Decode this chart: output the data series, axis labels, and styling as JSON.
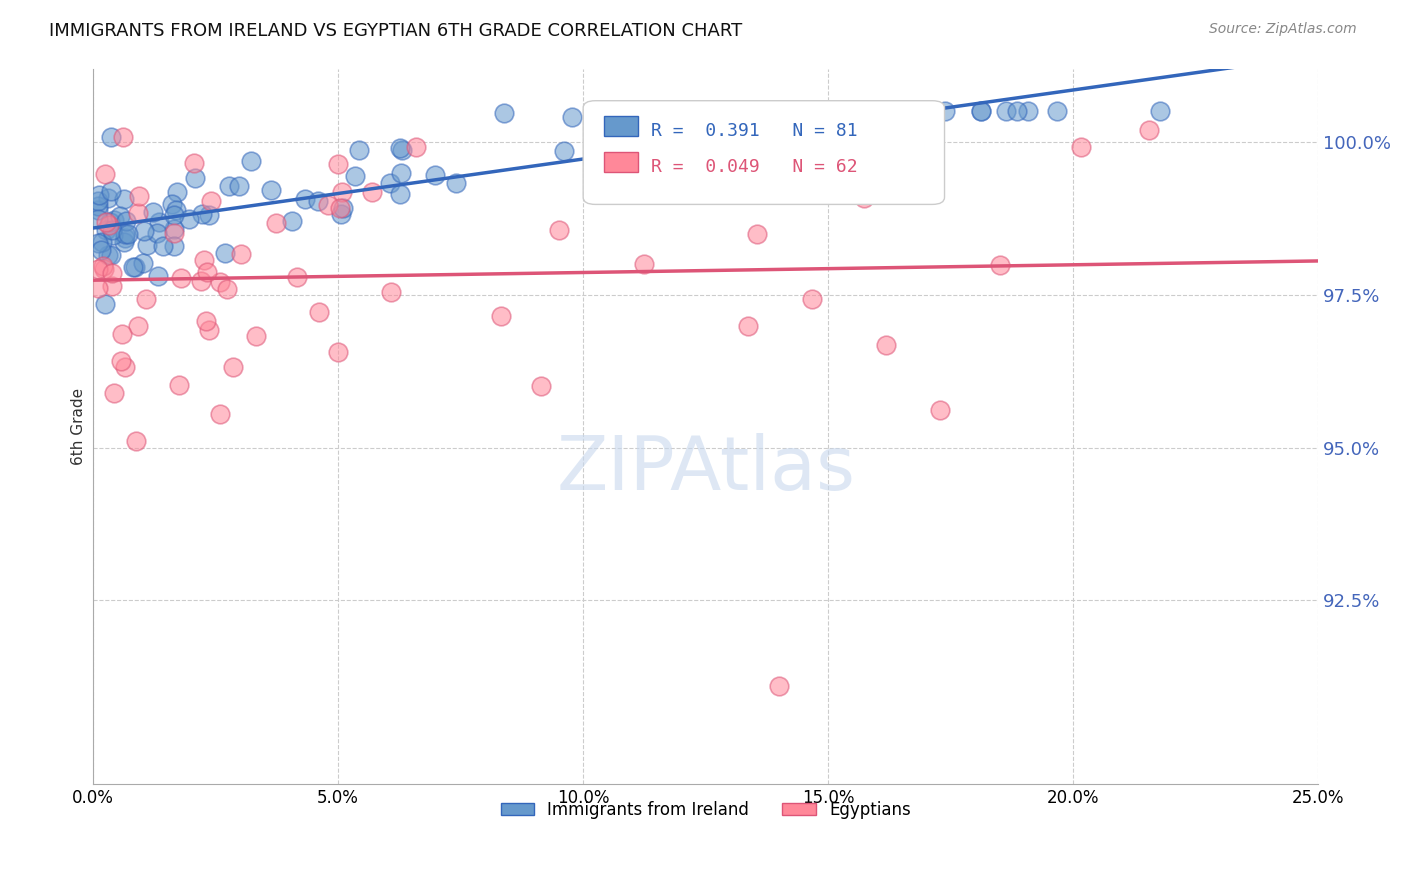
{
  "title": "IMMIGRANTS FROM IRELAND VS EGYPTIAN 6TH GRADE CORRELATION CHART",
  "source": "Source: ZipAtlas.com",
  "ylabel": "6th Grade",
  "legend_label_blue": "Immigrants from Ireland",
  "legend_label_pink": "Egyptians",
  "R_blue": 0.391,
  "N_blue": 81,
  "R_pink": 0.049,
  "N_pink": 62,
  "xlim": [
    0.0,
    0.25
  ],
  "ylim": [
    89.5,
    101.2
  ],
  "color_blue": "#6699CC",
  "color_pink": "#FF8899",
  "line_color_blue": "#3366BB",
  "line_color_pink": "#DD5577",
  "ytick_color": "#4466BB",
  "background_color": "#FFFFFF"
}
